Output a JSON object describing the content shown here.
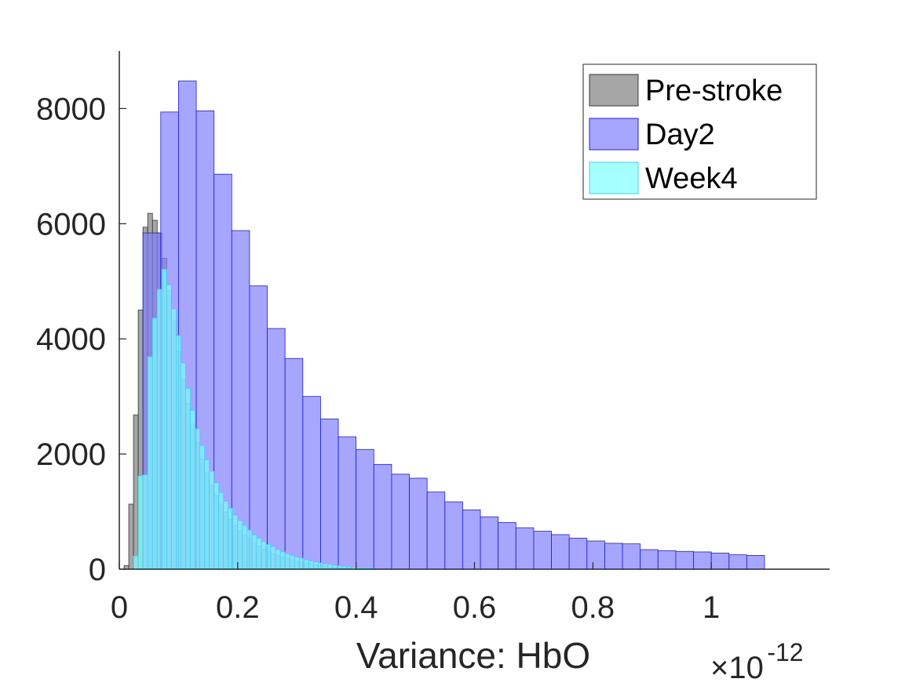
{
  "chart_data": {
    "type": "histogram",
    "title": "",
    "xlabel": "Variance: HbO",
    "ylabel": "",
    "x_exponent": {
      "times": "×10",
      "power": "-12"
    },
    "xlim": [
      0,
      1.2
    ],
    "ylim": [
      0,
      9000
    ],
    "xticks": [
      0,
      0.2,
      0.4,
      0.6,
      0.8,
      1
    ],
    "xtick_labels": [
      "0",
      "0.2",
      "0.4",
      "0.6",
      "0.8",
      "1"
    ],
    "yticks": [
      0,
      2000,
      4000,
      6000,
      8000
    ],
    "ytick_labels": [
      "0",
      "2000",
      "4000",
      "6000",
      "8000"
    ],
    "grid": false,
    "legend_position": "top-right",
    "series": [
      {
        "name": "Pre-stroke",
        "color": "#808080",
        "edge": "#333333",
        "bin_start": 0.008,
        "bin_width": 0.008,
        "values": [
          60,
          1130,
          2680,
          4500,
          5940,
          6180,
          6060,
          5840,
          5400,
          4840,
          4310,
          3780,
          3300,
          2880,
          2520,
          2200,
          1920,
          1680,
          1460,
          1280,
          1130,
          990,
          870,
          760,
          670,
          590,
          520,
          460,
          400,
          350,
          310,
          270,
          240,
          210,
          185,
          160,
          140,
          120,
          100,
          85,
          72,
          60,
          50,
          42,
          35,
          28,
          22,
          18,
          14,
          11,
          8,
          6,
          4,
          3,
          2,
          1
        ]
      },
      {
        "name": "Day2",
        "color": "#8080ff",
        "edge": "#2020cc",
        "bin_start": 0.04,
        "bin_width": 0.03,
        "values": [
          5840,
          7940,
          8480,
          7960,
          6860,
          5880,
          4920,
          4180,
          3660,
          3000,
          2610,
          2300,
          2080,
          1820,
          1650,
          1580,
          1340,
          1170,
          1030,
          910,
          810,
          720,
          660,
          600,
          540,
          490,
          450,
          440,
          340,
          320,
          310,
          300,
          280,
          250,
          240
        ]
      },
      {
        "name": "Week4",
        "color": "#80ffff",
        "edge": "#40d0f0",
        "bin_start": 0.024,
        "bin_width": 0.008,
        "values": [
          230,
          1620,
          1640,
          3690,
          4360,
          4860,
          5210,
          4940,
          4520,
          4060,
          3580,
          3140,
          2760,
          2440,
          2150,
          1900,
          1700,
          1500,
          1330,
          1180,
          1060,
          940,
          840,
          760,
          680,
          600,
          540,
          480,
          430,
          390,
          340,
          300,
          270,
          240,
          210,
          190,
          165,
          145,
          125,
          110,
          95,
          80,
          70,
          60,
          50,
          42,
          35,
          28,
          22,
          17,
          13,
          10,
          7,
          5,
          3,
          2,
          1
        ]
      }
    ]
  }
}
